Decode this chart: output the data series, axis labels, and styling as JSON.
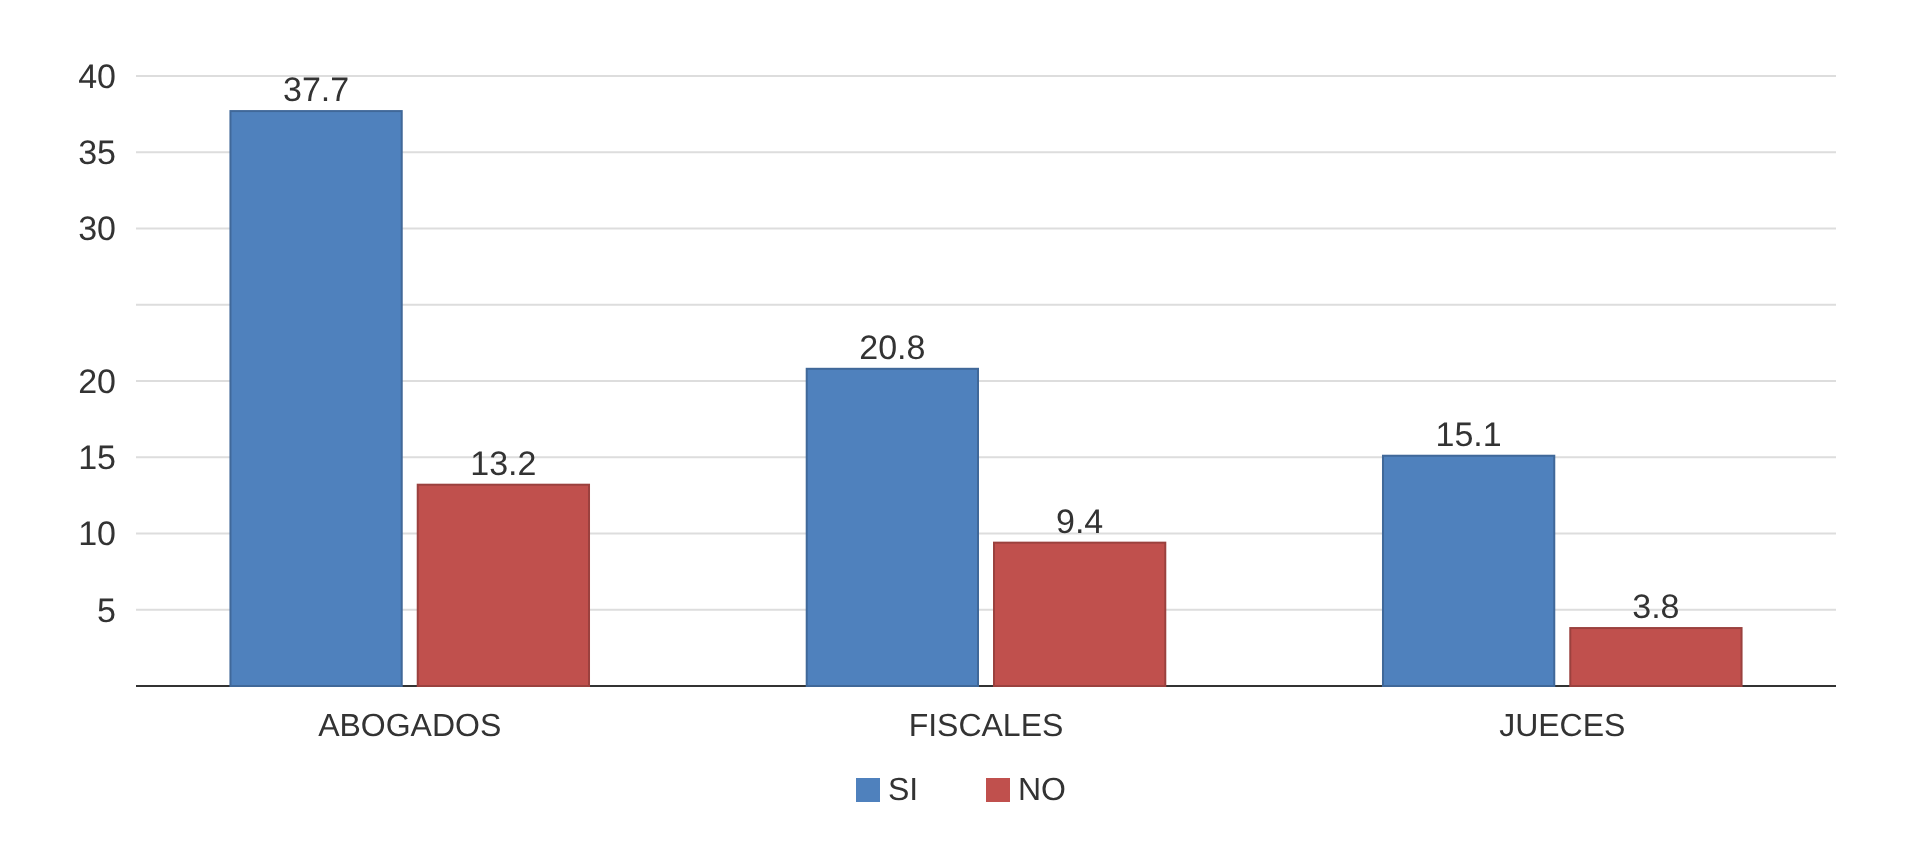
{
  "chart_data": {
    "type": "bar",
    "categories": [
      "ABOGADOS",
      "FISCALES",
      "JUECES"
    ],
    "series": [
      {
        "name": "SI",
        "color": "#4f81bd",
        "values": [
          37.7,
          20.8,
          15.1
        ]
      },
      {
        "name": "NO",
        "color": "#c0504d",
        "values": [
          13.2,
          9.4,
          3.8
        ]
      }
    ],
    "ylim": [
      0,
      40
    ],
    "yticks": [
      {
        "value": 0,
        "label": null
      },
      5,
      10,
      15,
      20,
      {
        "value": 25,
        "label": null
      },
      30,
      35,
      40
    ],
    "grid": "y",
    "data_labels": true,
    "legend": "bottom"
  }
}
